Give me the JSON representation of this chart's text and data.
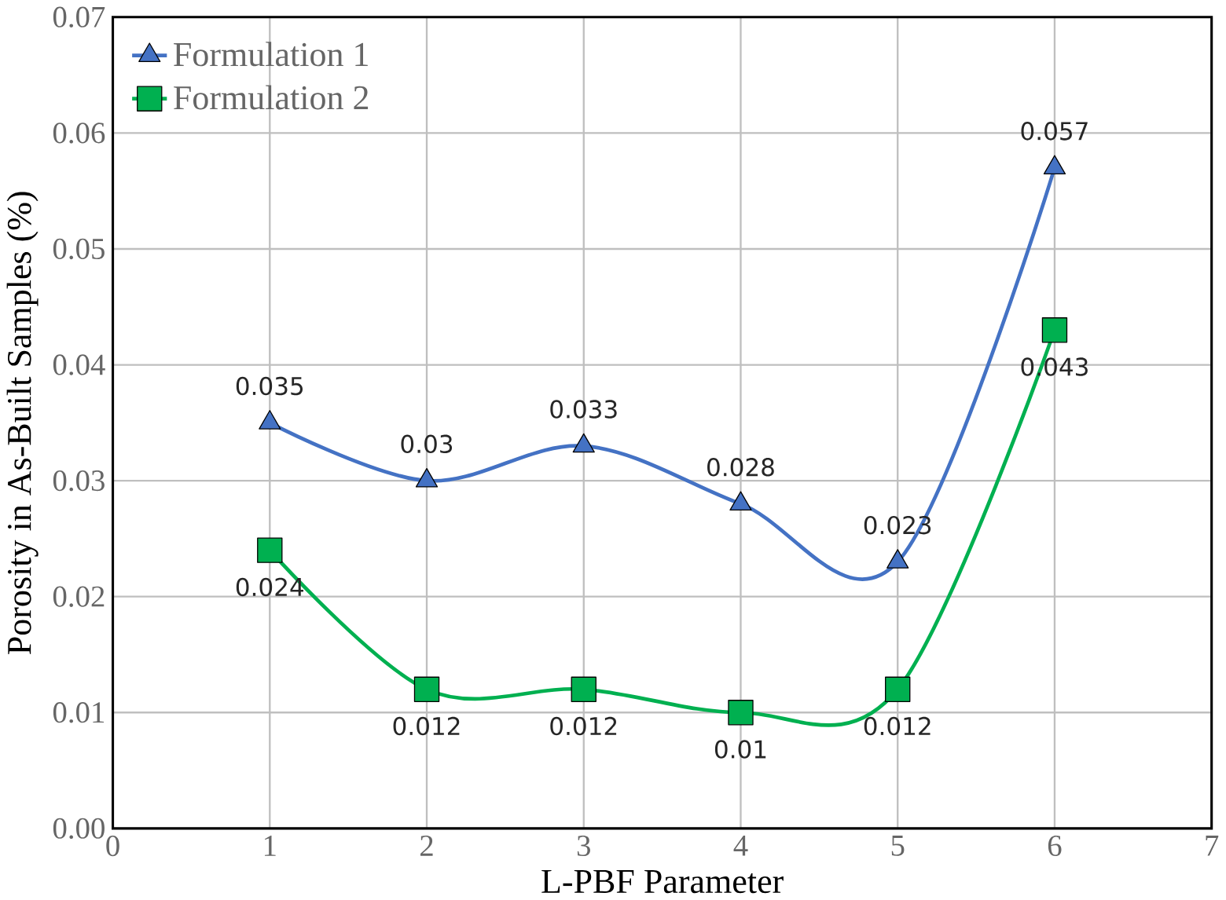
{
  "chart_data": {
    "type": "line",
    "xlabel": "L-PBF Parameter",
    "ylabel": "Porosity in As-Built Samples (%)",
    "x": [
      1,
      2,
      3,
      4,
      5,
      6
    ],
    "series": [
      {
        "name": "Formulation 1",
        "color": "#4472c4",
        "marker": "triangle",
        "values": [
          0.035,
          0.03,
          0.033,
          0.028,
          0.023,
          0.057
        ]
      },
      {
        "name": "Formulation 2",
        "color": "#00b050",
        "marker": "square",
        "values": [
          0.024,
          0.012,
          0.012,
          0.01,
          0.012,
          0.043
        ]
      }
    ],
    "xlim": [
      0,
      7
    ],
    "xticks": [
      0,
      1,
      2,
      3,
      4,
      5,
      6,
      7
    ],
    "ylim": [
      0,
      0.07
    ],
    "yticks": [
      {
        "value": 0,
        "label": "0.00"
      },
      {
        "value": 0.01,
        "label": "0.01"
      },
      {
        "value": 0.02,
        "label": "0.02"
      },
      {
        "value": 0.03,
        "label": "0.03"
      },
      {
        "value": 0.04,
        "label": "0.04"
      },
      {
        "value": 0.05,
        "label": "0.05"
      },
      {
        "value": 0.06,
        "label": "0.06"
      },
      {
        "value": 0.07,
        "label": "0.07"
      }
    ],
    "grid": true,
    "legend": "top left",
    "data_labels": true
  }
}
